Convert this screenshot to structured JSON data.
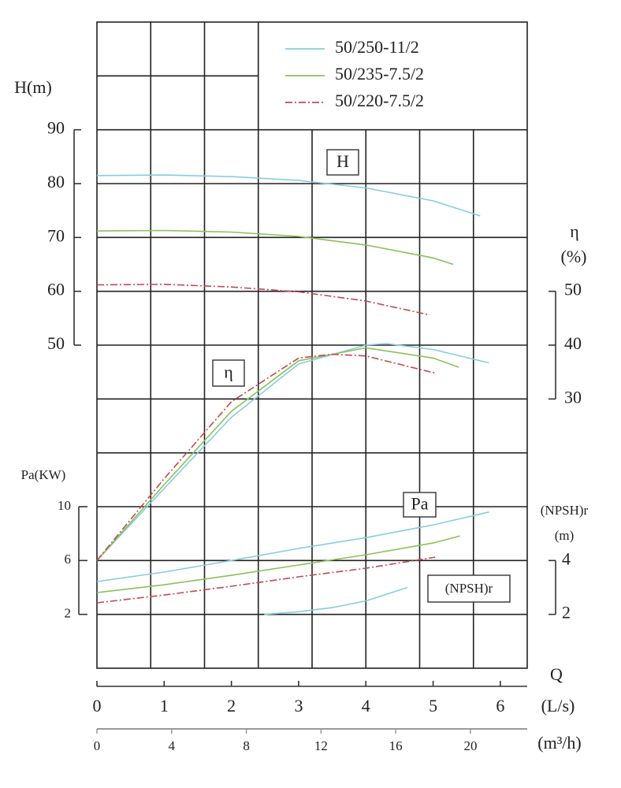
{
  "chart_data": {
    "type": "line",
    "xlabel": "Q",
    "xunit": "(L/s)",
    "x2unit": "(m³/h)",
    "xlim": [
      0,
      6.4
    ],
    "xticks": [
      0,
      1,
      2,
      3,
      4,
      5,
      6
    ],
    "x2lim": [
      0,
      23.04
    ],
    "x2ticks": [
      0,
      4,
      8,
      12,
      16,
      20
    ],
    "y_axes": [
      {
        "label": "H(m)",
        "lim": [
          -10,
          110
        ],
        "ticks": [
          50,
          60,
          70,
          80,
          90
        ],
        "side": "left"
      },
      {
        "label": "Pa(KW)",
        "lim": [
          -2,
          46
        ],
        "ticks": [
          2,
          6,
          10
        ],
        "side": "left"
      },
      {
        "label": "η",
        "unit": "(%)",
        "lim": [
          -20,
          100
        ],
        "ticks": [
          30,
          40,
          50
        ],
        "side": "right"
      },
      {
        "label": "(NPSH)r",
        "unit": "(m)",
        "lim": [
          0,
          24
        ],
        "ticks": [
          2,
          4
        ],
        "side": "right"
      }
    ],
    "curve_labels": [
      "H",
      "η",
      "Pa",
      "(NPSH)r"
    ],
    "series": [
      {
        "name": "50/250-11/2",
        "color": "#86cde0",
        "linestyle": "solid",
        "curves": [
          {
            "axis": 0,
            "x": [
              0,
              1,
              2,
              3,
              4,
              5,
              5.7
            ],
            "values": [
              81.5,
              81.6,
              81.3,
              80.6,
              79.2,
              76.8,
              74.0
            ]
          },
          {
            "axis": 2,
            "x": [
              0,
              1,
              2,
              3,
              4,
              4.3,
              5,
              5.83
            ],
            "values": [
              0,
              13.4,
              26.6,
              36.5,
              40.0,
              40.3,
              39.2,
              36.7
            ]
          },
          {
            "axis": 1,
            "x": [
              0,
              1,
              2,
              3,
              4,
              5,
              5.83
            ],
            "values": [
              4.44,
              5.14,
              6.0,
              6.9,
              7.7,
              8.65,
              9.6
            ]
          },
          {
            "axis": 3,
            "x": [
              2.49,
              3,
              3.5,
              4,
              4.62
            ],
            "values": [
              2.0,
              2.1,
              2.25,
              2.5,
              3.0
            ]
          }
        ]
      },
      {
        "name": "50/235-7.5/2",
        "color": "#8cc05a",
        "linestyle": "solid",
        "curves": [
          {
            "axis": 0,
            "x": [
              0,
              1,
              2,
              3,
              4,
              5,
              5.3
            ],
            "values": [
              71.2,
              71.3,
              71.0,
              70.2,
              68.6,
              66.2,
              65.0
            ]
          },
          {
            "axis": 2,
            "x": [
              0,
              1,
              2,
              3,
              4,
              5,
              5.38
            ],
            "values": [
              0,
              14.1,
              27.7,
              37.1,
              39.5,
              37.6,
              35.9
            ]
          },
          {
            "axis": 1,
            "x": [
              0,
              1,
              2,
              3,
              4,
              5,
              5.4
            ],
            "values": [
              3.62,
              4.2,
              4.9,
              5.67,
              6.43,
              7.3,
              7.83
            ]
          }
        ]
      },
      {
        "name": "50/220-7.5/2",
        "color": "#c24a52",
        "linestyle": "dashdot",
        "curves": [
          {
            "axis": 0,
            "x": [
              0,
              1,
              2,
              3,
              4,
              4.95
            ],
            "values": [
              61.2,
              61.3,
              60.8,
              59.9,
              58.2,
              55.6
            ]
          },
          {
            "axis": 2,
            "x": [
              0,
              1,
              2,
              3,
              3.5,
              4,
              5.03
            ],
            "values": [
              0,
              15.2,
              29.5,
              37.6,
              38.3,
              38.0,
              34.8
            ]
          },
          {
            "axis": 1,
            "x": [
              0,
              1,
              2,
              3,
              4,
              5.03
            ],
            "values": [
              2.86,
              3.44,
              4.09,
              4.79,
              5.43,
              6.25
            ]
          }
        ]
      }
    ]
  }
}
